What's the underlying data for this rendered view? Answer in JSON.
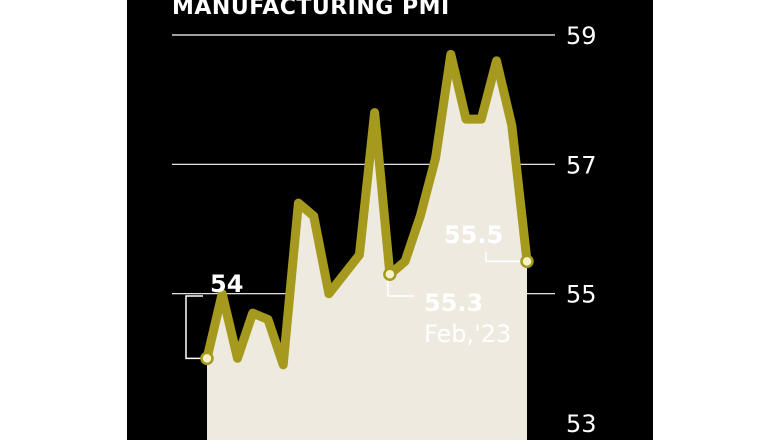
{
  "chart_data": {
    "type": "line",
    "title": "MANUFACTURING PMI",
    "ylim": [
      53,
      59
    ],
    "y_ticks": [
      53,
      55,
      57,
      59
    ],
    "y_tick_labels": [
      "53",
      "55",
      "57",
      "59"
    ],
    "grid": true,
    "series": [
      {
        "values": [
          54.0,
          55.0,
          54.0,
          54.7,
          54.6,
          53.9,
          56.4,
          56.2,
          55.0,
          55.3,
          55.6,
          57.8,
          55.3,
          55.5,
          56.2,
          57.1,
          58.7,
          57.7,
          57.7,
          58.6,
          57.6,
          55.5
        ]
      }
    ],
    "annotations": [
      {
        "value": "54",
        "index": 0
      },
      {
        "value": "55.3",
        "sublabel": "Feb,'23",
        "index": 12
      },
      {
        "value": "55.5",
        "index": 21
      }
    ],
    "colors": {
      "background": "#000000",
      "line": "#a69a1e",
      "area": "#eeeae0",
      "text": "#ffffff",
      "gridline": "#ffffff",
      "marker_fill": "#f5f2c8"
    }
  }
}
